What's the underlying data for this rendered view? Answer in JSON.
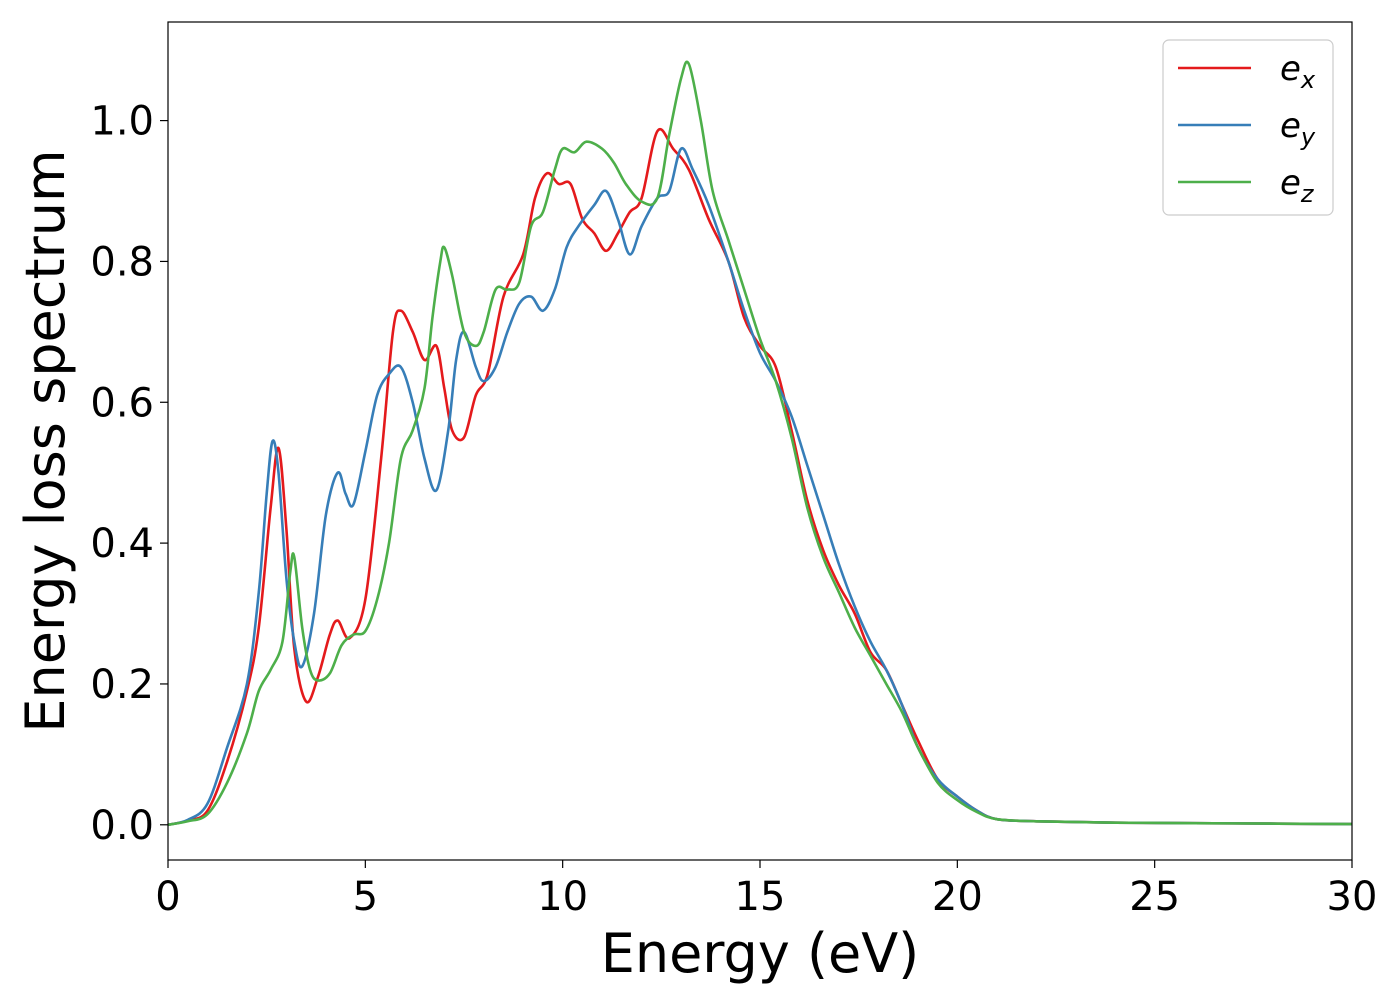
{
  "chart_data": {
    "type": "line",
    "xlabel": "Energy (eV)",
    "ylabel": "Energy loss spectrum",
    "xlim": [
      0,
      30
    ],
    "ylim": [
      -0.05,
      1.14
    ],
    "xticks": [
      0,
      5,
      10,
      15,
      20,
      25,
      30
    ],
    "xtick_labels": [
      "0",
      "5",
      "10",
      "15",
      "20",
      "25",
      "30"
    ],
    "yticks": [
      0.0,
      0.2,
      0.4,
      0.6,
      0.8,
      1.0
    ],
    "ytick_labels": [
      "0.0",
      "0.2",
      "0.4",
      "0.6",
      "0.8",
      "1.0"
    ],
    "grid": false,
    "legend_position": "top-right",
    "series": [
      {
        "name": "e",
        "subscript": "x",
        "color": "#e41a1c",
        "x": [
          0,
          0.5,
          1.0,
          1.5,
          2.0,
          2.3,
          2.6,
          2.8,
          3.0,
          3.2,
          3.5,
          3.8,
          4.1,
          4.3,
          4.6,
          5.0,
          5.4,
          5.7,
          5.9,
          6.2,
          6.5,
          6.8,
          7.0,
          7.2,
          7.5,
          7.8,
          8.1,
          8.5,
          9.0,
          9.3,
          9.6,
          9.9,
          10.2,
          10.5,
          10.8,
          11.1,
          11.4,
          11.7,
          12.0,
          12.4,
          12.8,
          13.2,
          13.7,
          14.2,
          14.6,
          15.0,
          15.4,
          15.8,
          16.2,
          16.6,
          17.0,
          17.4,
          17.8,
          18.2,
          18.6,
          19.0,
          19.5,
          20.0,
          20.5,
          21.0,
          22.0,
          24.0,
          27.0,
          30.0
        ],
        "y": [
          0.0,
          0.006,
          0.02,
          0.09,
          0.19,
          0.28,
          0.45,
          0.535,
          0.42,
          0.25,
          0.175,
          0.21,
          0.27,
          0.29,
          0.265,
          0.32,
          0.52,
          0.7,
          0.73,
          0.7,
          0.66,
          0.68,
          0.62,
          0.56,
          0.55,
          0.61,
          0.64,
          0.75,
          0.81,
          0.89,
          0.925,
          0.91,
          0.91,
          0.86,
          0.84,
          0.815,
          0.84,
          0.87,
          0.89,
          0.985,
          0.96,
          0.93,
          0.86,
          0.8,
          0.72,
          0.68,
          0.65,
          0.56,
          0.46,
          0.39,
          0.34,
          0.3,
          0.245,
          0.22,
          0.17,
          0.12,
          0.065,
          0.04,
          0.02,
          0.008,
          0.005,
          0.003,
          0.002,
          0.001
        ]
      },
      {
        "name": "e",
        "subscript": "y",
        "color": "#377eb8",
        "x": [
          0,
          0.5,
          1.0,
          1.5,
          2.0,
          2.3,
          2.5,
          2.65,
          2.8,
          3.0,
          3.2,
          3.4,
          3.7,
          4.0,
          4.3,
          4.5,
          4.7,
          5.0,
          5.3,
          5.6,
          5.9,
          6.2,
          6.5,
          6.8,
          7.1,
          7.3,
          7.5,
          7.8,
          8.0,
          8.3,
          8.6,
          8.9,
          9.2,
          9.5,
          9.8,
          10.1,
          10.4,
          10.8,
          11.1,
          11.4,
          11.7,
          12.0,
          12.4,
          12.7,
          13.0,
          13.3,
          13.7,
          14.2,
          14.6,
          15.0,
          15.4,
          15.8,
          16.2,
          16.6,
          17.0,
          17.4,
          17.8,
          18.2,
          18.6,
          19.0,
          19.5,
          20.0,
          20.5,
          21.0,
          22.0,
          24.0,
          27.0,
          30.0
        ],
        "y": [
          0.0,
          0.007,
          0.03,
          0.11,
          0.2,
          0.33,
          0.47,
          0.545,
          0.5,
          0.35,
          0.26,
          0.225,
          0.3,
          0.44,
          0.5,
          0.47,
          0.455,
          0.53,
          0.61,
          0.64,
          0.65,
          0.6,
          0.52,
          0.475,
          0.56,
          0.66,
          0.7,
          0.65,
          0.63,
          0.65,
          0.7,
          0.74,
          0.75,
          0.73,
          0.76,
          0.82,
          0.85,
          0.88,
          0.9,
          0.86,
          0.81,
          0.85,
          0.89,
          0.9,
          0.96,
          0.93,
          0.88,
          0.8,
          0.73,
          0.67,
          0.63,
          0.58,
          0.51,
          0.44,
          0.37,
          0.31,
          0.26,
          0.22,
          0.17,
          0.11,
          0.065,
          0.04,
          0.02,
          0.008,
          0.005,
          0.003,
          0.002,
          0.001
        ]
      },
      {
        "name": "e",
        "subscript": "z",
        "color": "#4daf4a",
        "x": [
          0,
          0.5,
          1.0,
          1.5,
          2.0,
          2.3,
          2.6,
          2.9,
          3.1,
          3.2,
          3.4,
          3.6,
          3.8,
          4.1,
          4.4,
          4.7,
          5.0,
          5.3,
          5.6,
          5.9,
          6.2,
          6.5,
          6.7,
          6.9,
          7.0,
          7.2,
          7.5,
          7.8,
          8.0,
          8.3,
          8.6,
          8.9,
          9.2,
          9.5,
          9.8,
          10.0,
          10.3,
          10.6,
          11.0,
          11.3,
          11.6,
          12.0,
          12.4,
          12.7,
          13.0,
          13.2,
          13.5,
          13.8,
          14.2,
          14.6,
          15.0,
          15.4,
          15.8,
          16.2,
          16.6,
          17.0,
          17.4,
          17.8,
          18.2,
          18.6,
          19.0,
          19.5,
          20.0,
          20.5,
          21.0,
          22.0,
          24.0,
          27.0,
          30.0
        ],
        "y": [
          0.0,
          0.005,
          0.015,
          0.06,
          0.13,
          0.19,
          0.22,
          0.26,
          0.36,
          0.38,
          0.28,
          0.22,
          0.205,
          0.215,
          0.255,
          0.27,
          0.275,
          0.32,
          0.4,
          0.52,
          0.56,
          0.62,
          0.72,
          0.8,
          0.82,
          0.78,
          0.7,
          0.68,
          0.7,
          0.76,
          0.76,
          0.77,
          0.85,
          0.87,
          0.93,
          0.96,
          0.955,
          0.97,
          0.96,
          0.94,
          0.91,
          0.885,
          0.89,
          0.98,
          1.06,
          1.08,
          1.0,
          0.9,
          0.83,
          0.76,
          0.69,
          0.63,
          0.55,
          0.45,
          0.38,
          0.33,
          0.28,
          0.24,
          0.2,
          0.16,
          0.11,
          0.06,
          0.035,
          0.018,
          0.008,
          0.005,
          0.003,
          0.002,
          0.001
        ]
      }
    ]
  }
}
